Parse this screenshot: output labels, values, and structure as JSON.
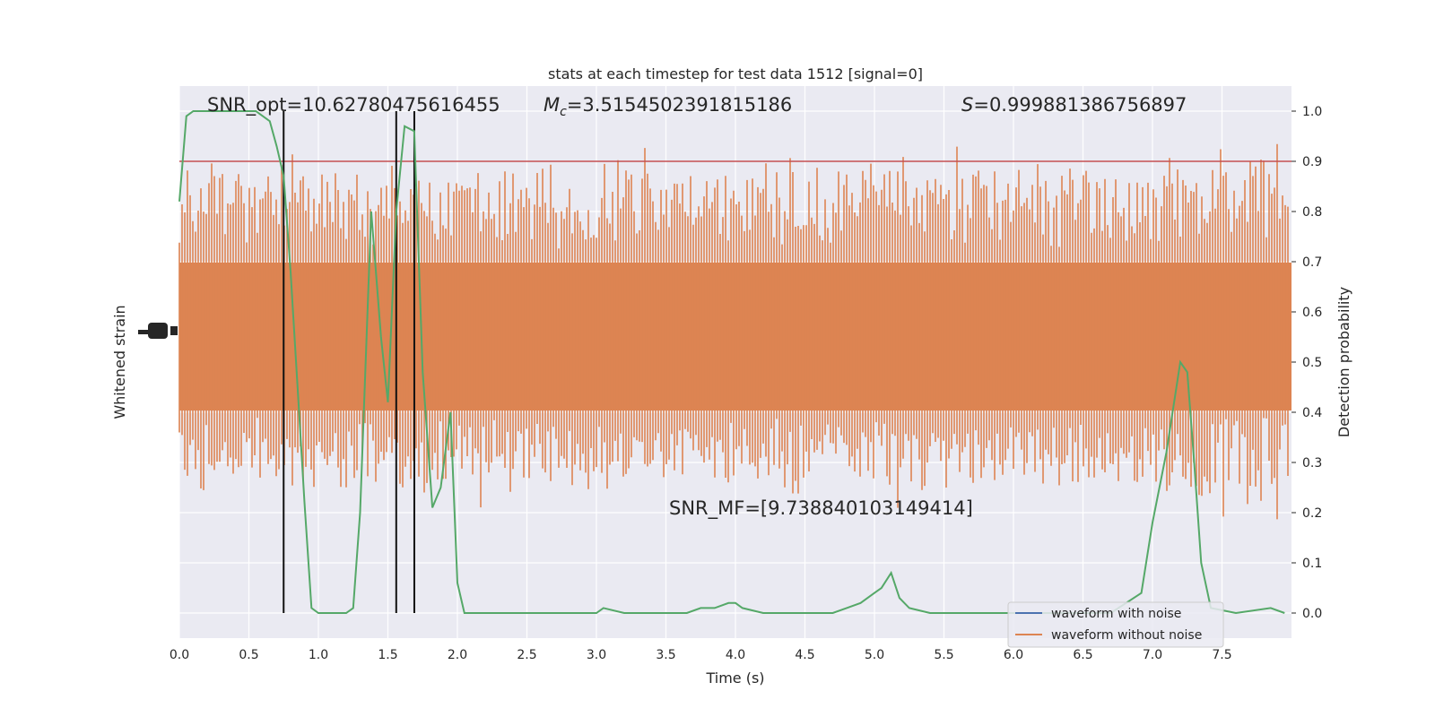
{
  "chart_data": {
    "type": "line",
    "title": "stats at each timestep for test data 1512 [signal=0]",
    "xlabel": "Time (s)",
    "ylabel_left": "Whitened strain",
    "ylabel_right": "Detection probability",
    "xlim": [
      0.0,
      8.0
    ],
    "ylim_right": [
      -0.05,
      1.05
    ],
    "x_ticks": [
      "0.0",
      "0.5",
      "1.0",
      "1.5",
      "2.0",
      "2.5",
      "3.0",
      "3.5",
      "4.0",
      "4.5",
      "5.0",
      "5.5",
      "6.0",
      "6.5",
      "7.0",
      "7.5"
    ],
    "y_ticks_right": [
      "0.0",
      "0.1",
      "0.2",
      "0.3",
      "0.4",
      "0.5",
      "0.6",
      "0.7",
      "0.8",
      "0.9",
      "1.0"
    ],
    "grid": true,
    "legend_position": "lower-right",
    "legend": [
      {
        "label": "waveform with noise",
        "color": "#4c72b0"
      },
      {
        "label": "waveform without noise",
        "color": "#dd8452"
      }
    ],
    "annotations": {
      "snr_opt": "SNR_opt=10.62780475616455",
      "mc_symbol": "M",
      "mc_sub": "c",
      "mc_value": "=3.5154502391815186",
      "s_symbol": "S",
      "s_value": "=0.999881386756897",
      "snr_mf": "SNR_MF=[9.738840103149414]"
    },
    "threshold": {
      "value": 0.9,
      "color": "#c44e52"
    },
    "vertical_lines": [
      0.75,
      1.56,
      1.69
    ],
    "strain_color": "#dd8452",
    "probability_color": "#55a868",
    "probability_series": {
      "x": [
        0.0,
        0.05,
        0.1,
        0.15,
        0.25,
        0.4,
        0.55,
        0.65,
        0.7,
        0.75,
        0.8,
        0.85,
        0.9,
        0.95,
        1.0,
        1.1,
        1.2,
        1.25,
        1.3,
        1.38,
        1.45,
        1.5,
        1.56,
        1.62,
        1.69,
        1.75,
        1.82,
        1.88,
        1.95,
        2.0,
        2.05,
        2.2,
        2.5,
        2.8,
        3.0,
        3.05,
        3.2,
        3.5,
        3.65,
        3.75,
        3.85,
        3.95,
        4.0,
        4.05,
        4.2,
        4.5,
        4.7,
        4.8,
        4.9,
        5.0,
        5.05,
        5.12,
        5.18,
        5.25,
        5.4,
        5.6,
        5.9,
        6.3,
        6.7,
        6.92,
        7.0,
        7.1,
        7.2,
        7.25,
        7.3,
        7.35,
        7.42,
        7.6,
        7.85,
        7.95
      ],
      "y": [
        0.82,
        0.99,
        1.0,
        1.0,
        1.0,
        1.0,
        1.0,
        0.98,
        0.93,
        0.87,
        0.68,
        0.45,
        0.22,
        0.01,
        0.0,
        0.0,
        0.0,
        0.01,
        0.2,
        0.8,
        0.55,
        0.42,
        0.8,
        0.97,
        0.96,
        0.48,
        0.21,
        0.25,
        0.4,
        0.06,
        0.0,
        0.0,
        0.0,
        0.0,
        0.0,
        0.01,
        0.0,
        0.0,
        0.0,
        0.01,
        0.01,
        0.02,
        0.02,
        0.01,
        0.0,
        0.0,
        0.0,
        0.01,
        0.02,
        0.04,
        0.05,
        0.08,
        0.03,
        0.01,
        0.0,
        0.0,
        0.0,
        0.0,
        0.0,
        0.04,
        0.18,
        0.32,
        0.5,
        0.48,
        0.3,
        0.1,
        0.01,
        0.0,
        0.01,
        0.0
      ]
    }
  }
}
